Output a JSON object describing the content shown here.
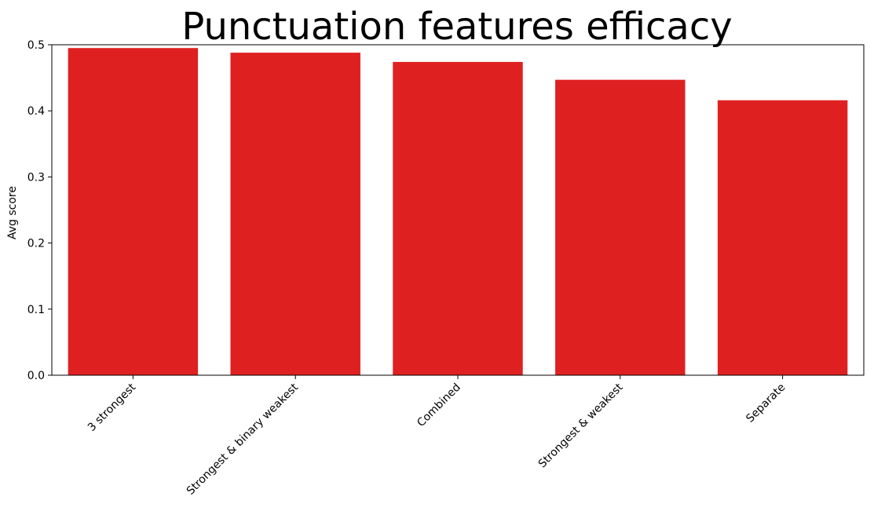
{
  "chart_data": {
    "type": "bar",
    "title": "Punctuation features efficacy",
    "xlabel": "",
    "ylabel": "Avg score",
    "categories": [
      "3 strongest",
      "Strongest & binary weakest",
      "Combined",
      "Strongest & weakest",
      "Separate"
    ],
    "values": [
      0.495,
      0.488,
      0.474,
      0.447,
      0.416
    ],
    "ylim": [
      0,
      0.5
    ],
    "yticks": [
      "0.0",
      "0.1",
      "0.2",
      "0.3",
      "0.4",
      "0.5"
    ],
    "bar_color": "#df2020",
    "grid": false,
    "legend": "none"
  }
}
